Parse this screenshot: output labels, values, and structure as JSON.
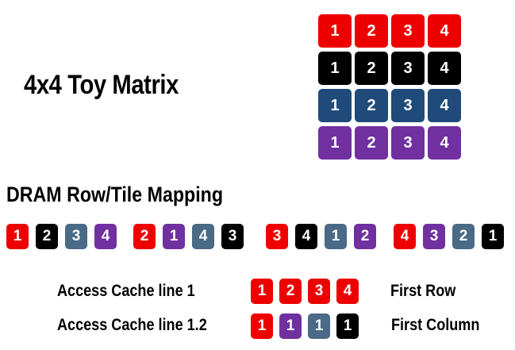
{
  "title": "4x4 Toy Matrix",
  "subtitle": "DRAM Row/Tile Mapping",
  "colors": {
    "red": "#ee0000",
    "black": "#000000",
    "blue": "#1f4a7a",
    "slate": "#4a6a85",
    "purple": "#7030a0"
  },
  "matrix": [
    {
      "color": "red",
      "cells": [
        "1",
        "2",
        "3",
        "4"
      ]
    },
    {
      "color": "black",
      "cells": [
        "1",
        "2",
        "3",
        "4"
      ]
    },
    {
      "color": "blue",
      "cells": [
        "1",
        "2",
        "3",
        "4"
      ]
    },
    {
      "color": "purple",
      "cells": [
        "1",
        "2",
        "3",
        "4"
      ]
    }
  ],
  "mapping_groups": [
    [
      {
        "v": "1",
        "c": "red"
      },
      {
        "v": "2",
        "c": "black"
      },
      {
        "v": "3",
        "c": "slate"
      },
      {
        "v": "4",
        "c": "purple"
      }
    ],
    [
      {
        "v": "2",
        "c": "red"
      },
      {
        "v": "1",
        "c": "purple"
      },
      {
        "v": "4",
        "c": "slate"
      },
      {
        "v": "3",
        "c": "black"
      }
    ],
    [
      {
        "v": "3",
        "c": "red"
      },
      {
        "v": "4",
        "c": "black"
      },
      {
        "v": "1",
        "c": "slate"
      },
      {
        "v": "2",
        "c": "purple"
      }
    ],
    [
      {
        "v": "4",
        "c": "red"
      },
      {
        "v": "3",
        "c": "purple"
      },
      {
        "v": "2",
        "c": "slate"
      },
      {
        "v": "1",
        "c": "black"
      }
    ]
  ],
  "access": [
    {
      "label": "Access Cache line 1",
      "result": "First Row",
      "cells": [
        {
          "v": "1",
          "c": "red"
        },
        {
          "v": "2",
          "c": "red"
        },
        {
          "v": "3",
          "c": "red"
        },
        {
          "v": "4",
          "c": "red"
        }
      ]
    },
    {
      "label": "Access Cache line 1.2",
      "result": "First Column",
      "cells": [
        {
          "v": "1",
          "c": "red"
        },
        {
          "v": "1",
          "c": "purple"
        },
        {
          "v": "1",
          "c": "slate"
        },
        {
          "v": "1",
          "c": "black"
        }
      ]
    }
  ]
}
